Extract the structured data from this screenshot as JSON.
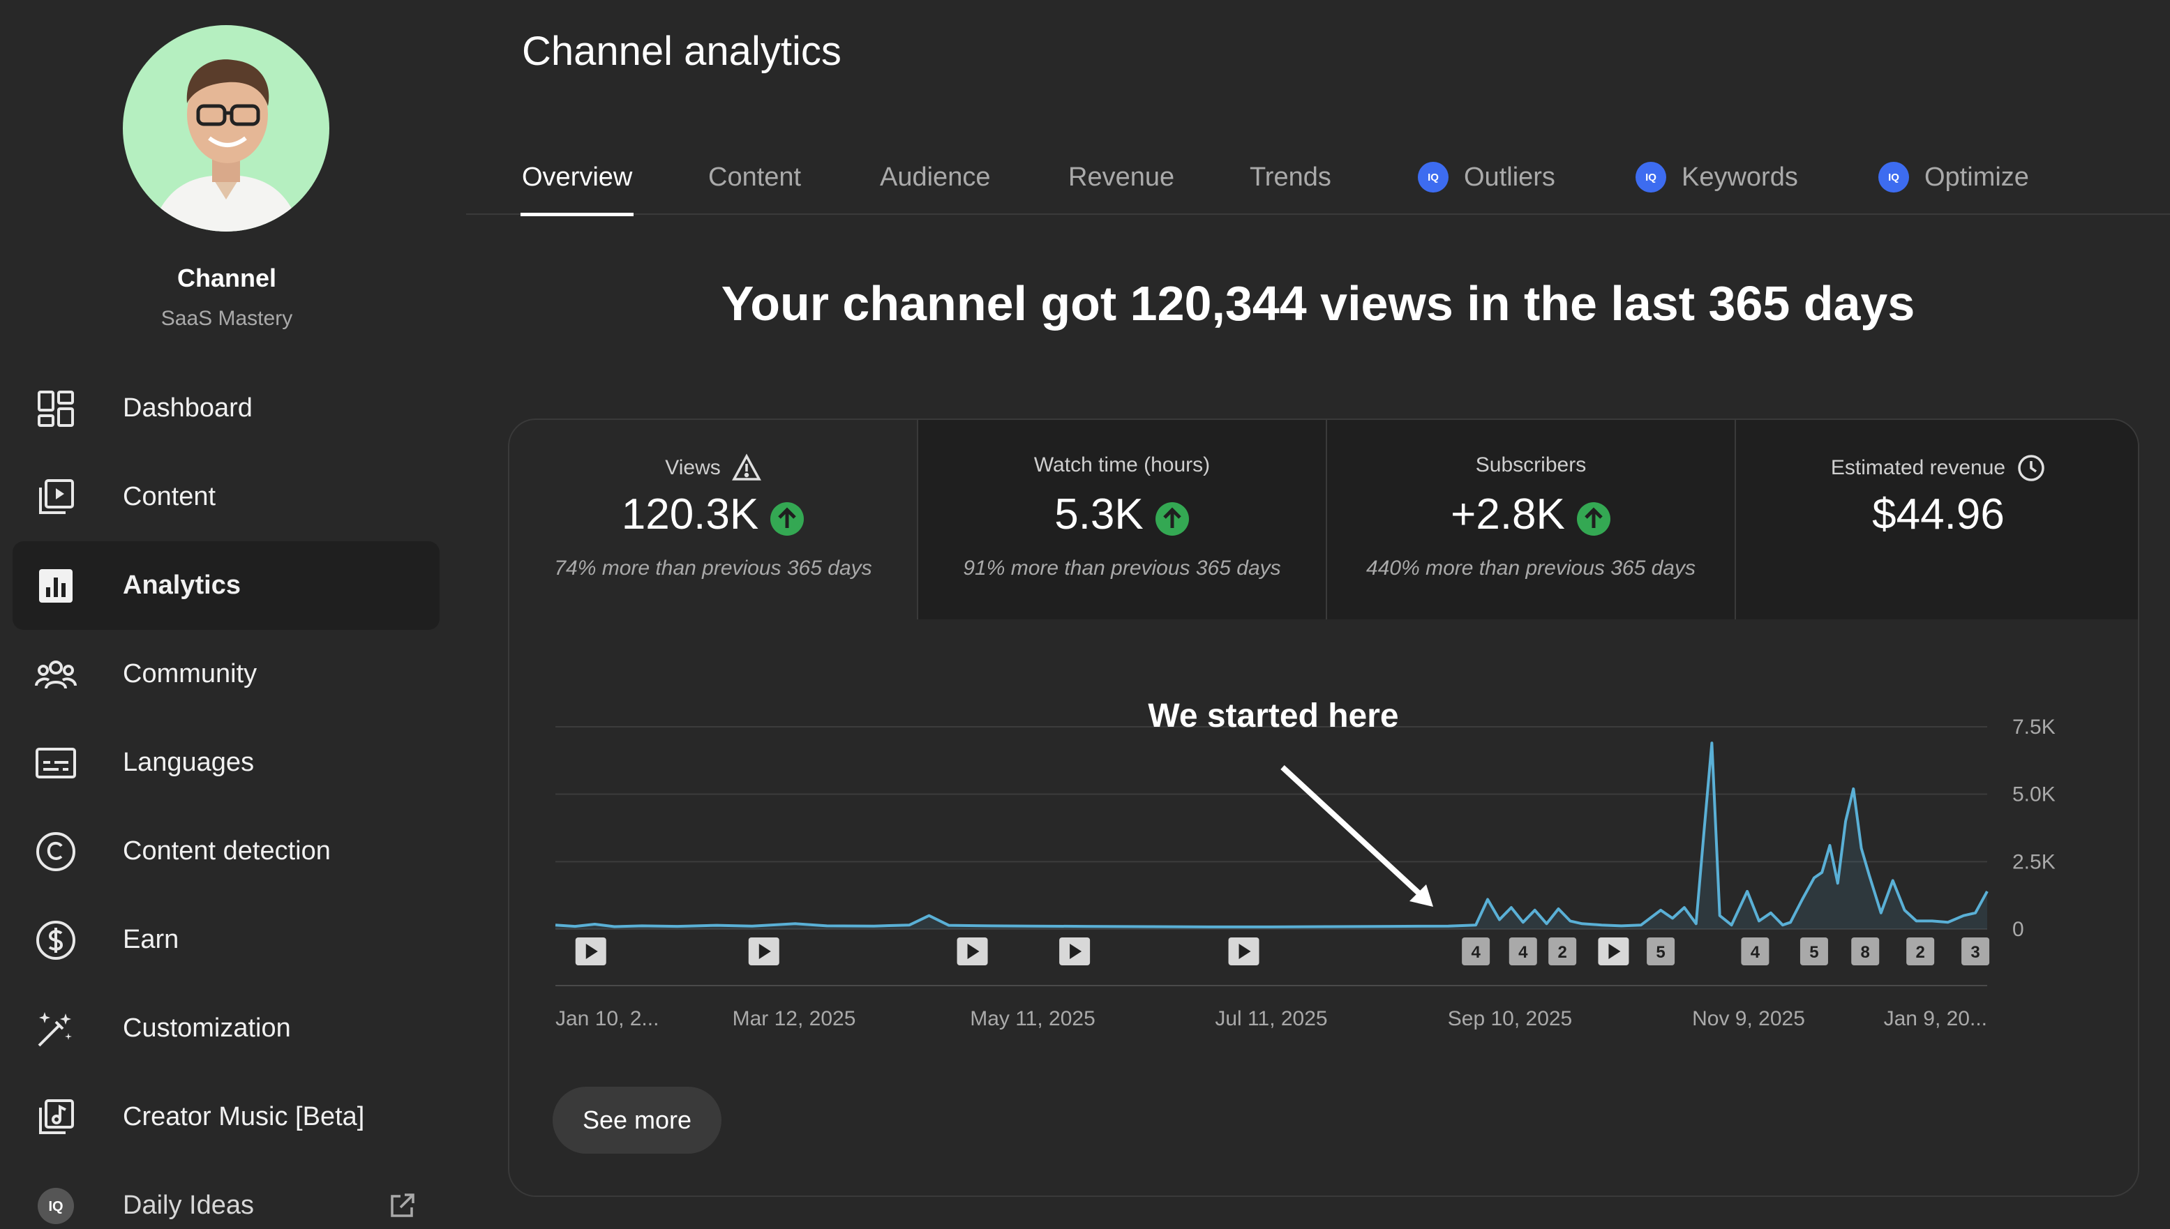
{
  "sidebar": {
    "channel_name": "Channel",
    "channel_subtitle": "SaaS Mastery",
    "items": [
      {
        "label": "Dashboard",
        "icon": "dashboard-icon",
        "active": false
      },
      {
        "label": "Content",
        "icon": "content-icon",
        "active": false
      },
      {
        "label": "Analytics",
        "icon": "analytics-icon",
        "active": true
      },
      {
        "label": "Community",
        "icon": "community-icon",
        "active": false
      },
      {
        "label": "Languages",
        "icon": "languages-icon",
        "active": false
      },
      {
        "label": "Content detection",
        "icon": "copyright-icon",
        "active": false
      },
      {
        "label": "Earn",
        "icon": "dollar-icon",
        "active": false
      },
      {
        "label": "Customization",
        "icon": "magic-wand-icon",
        "active": false
      },
      {
        "label": "Creator Music [Beta]",
        "icon": "music-icon",
        "active": false
      },
      {
        "label": "Daily Ideas",
        "icon": "iq-icon",
        "active": false,
        "external_icon": "external-link-icon"
      }
    ]
  },
  "header": {
    "title": "Channel analytics",
    "tabs": [
      {
        "label": "Overview",
        "active": true,
        "badge": ""
      },
      {
        "label": "Content",
        "active": false,
        "badge": ""
      },
      {
        "label": "Audience",
        "active": false,
        "badge": ""
      },
      {
        "label": "Revenue",
        "active": false,
        "badge": ""
      },
      {
        "label": "Trends",
        "active": false,
        "badge": ""
      },
      {
        "label": "Outliers",
        "active": false,
        "badge": "IQ"
      },
      {
        "label": "Keywords",
        "active": false,
        "badge": "IQ"
      },
      {
        "label": "Optimize",
        "active": false,
        "badge": "IQ"
      }
    ]
  },
  "headline": "Your channel got 120,344 views in the last 365 days",
  "metrics": [
    {
      "label": "Views",
      "value": "120.3K",
      "note": "74% more than previous 365 days",
      "trend": "up",
      "label_icon": "warning-icon"
    },
    {
      "label": "Watch time (hours)",
      "value": "5.3K",
      "note": "91% more than previous 365 days",
      "trend": "up",
      "label_icon": ""
    },
    {
      "label": "Subscribers",
      "value": "+2.8K",
      "note": "440% more than previous 365 days",
      "trend": "up",
      "label_icon": ""
    },
    {
      "label": "Estimated revenue",
      "value": "$44.96",
      "note": "",
      "trend": "",
      "label_icon": "clock-icon"
    }
  ],
  "colors": {
    "background": "#282828",
    "card_dark": "#1f1f1f",
    "line": "#5ab0d6",
    "trend_up": "#34a853",
    "badge": "#3d6cf0",
    "avatar_bg": "#b5efc0"
  },
  "chart_data": {
    "type": "line",
    "title": "",
    "xlabel": "",
    "ylabel": "",
    "ylim": [
      0,
      7500
    ],
    "yticks": [
      "7.5K",
      "5.0K",
      "2.5K",
      "0"
    ],
    "x_tick_labels": [
      "Jan 10, 2...",
      "Mar 12, 2025",
      "May 11, 2025",
      "Jul 11, 2025",
      "Sep 10, 2025",
      "Nov 9, 2025",
      "Jan 9, 20..."
    ],
    "grid": true,
    "y_axis_side": "right",
    "annotation": "We started here",
    "x_range": [
      "2025-01-10",
      "2026-01-09"
    ],
    "series": [
      {
        "x": [
          "2025-01-10",
          "2025-01-15",
          "2025-01-20",
          "2025-01-25",
          "2025-02-01",
          "2025-02-10",
          "2025-02-20",
          "2025-03-01",
          "2025-03-12",
          "2025-03-20",
          "2025-04-01",
          "2025-04-10",
          "2025-04-15",
          "2025-04-20",
          "2025-05-01",
          "2025-05-11",
          "2025-05-25",
          "2025-06-10",
          "2025-06-25",
          "2025-07-11",
          "2025-07-25",
          "2025-08-10",
          "2025-08-25",
          "2025-09-01",
          "2025-09-04",
          "2025-09-07",
          "2025-09-10",
          "2025-09-13",
          "2025-09-16",
          "2025-09-19",
          "2025-09-22",
          "2025-09-25",
          "2025-09-28",
          "2025-10-03",
          "2025-10-08",
          "2025-10-13",
          "2025-10-18",
          "2025-10-21",
          "2025-10-24",
          "2025-10-27",
          "2025-10-29",
          "2025-10-31",
          "2025-11-02",
          "2025-11-05",
          "2025-11-09",
          "2025-11-12",
          "2025-11-15",
          "2025-11-18",
          "2025-11-20",
          "2025-11-23",
          "2025-11-26",
          "2025-11-28",
          "2025-11-30",
          "2025-12-02",
          "2025-12-04",
          "2025-12-06",
          "2025-12-08",
          "2025-12-10",
          "2025-12-13",
          "2025-12-16",
          "2025-12-19",
          "2025-12-22",
          "2025-12-26",
          "2025-12-30",
          "2026-01-03",
          "2026-01-06",
          "2026-01-09"
        ],
        "y": [
          150,
          100,
          180,
          90,
          120,
          100,
          140,
          110,
          200,
          120,
          110,
          150,
          500,
          140,
          120,
          110,
          100,
          90,
          80,
          80,
          90,
          100,
          110,
          150,
          1100,
          350,
          800,
          250,
          700,
          200,
          750,
          300,
          200,
          150,
          120,
          150,
          700,
          400,
          800,
          200,
          3600,
          6900,
          500,
          150,
          1400,
          300,
          600,
          150,
          250,
          1100,
          1900,
          2100,
          3100,
          1700,
          4000,
          5200,
          3000,
          2000,
          600,
          1800,
          700,
          300,
          300,
          250,
          500,
          600,
          1400
        ]
      }
    ],
    "markers": [
      {
        "date": "2025-01-19",
        "kind": "play"
      },
      {
        "date": "2025-03-04",
        "kind": "play"
      },
      {
        "date": "2025-04-26",
        "kind": "play"
      },
      {
        "date": "2025-05-22",
        "kind": "play"
      },
      {
        "date": "2025-07-04",
        "kind": "play"
      },
      {
        "date": "2025-09-01",
        "kind": "count",
        "label": "4"
      },
      {
        "date": "2025-09-13",
        "kind": "count",
        "label": "4"
      },
      {
        "date": "2025-09-23",
        "kind": "count",
        "label": "2"
      },
      {
        "date": "2025-10-06",
        "kind": "play"
      },
      {
        "date": "2025-10-18",
        "kind": "count",
        "label": "5"
      },
      {
        "date": "2025-11-11",
        "kind": "count",
        "label": "4"
      },
      {
        "date": "2025-11-26",
        "kind": "count",
        "label": "5"
      },
      {
        "date": "2025-12-09",
        "kind": "count",
        "label": "8"
      },
      {
        "date": "2025-12-23",
        "kind": "count",
        "label": "2"
      },
      {
        "date": "2026-01-06",
        "kind": "count",
        "label": "3"
      }
    ]
  },
  "see_more_label": "See more"
}
